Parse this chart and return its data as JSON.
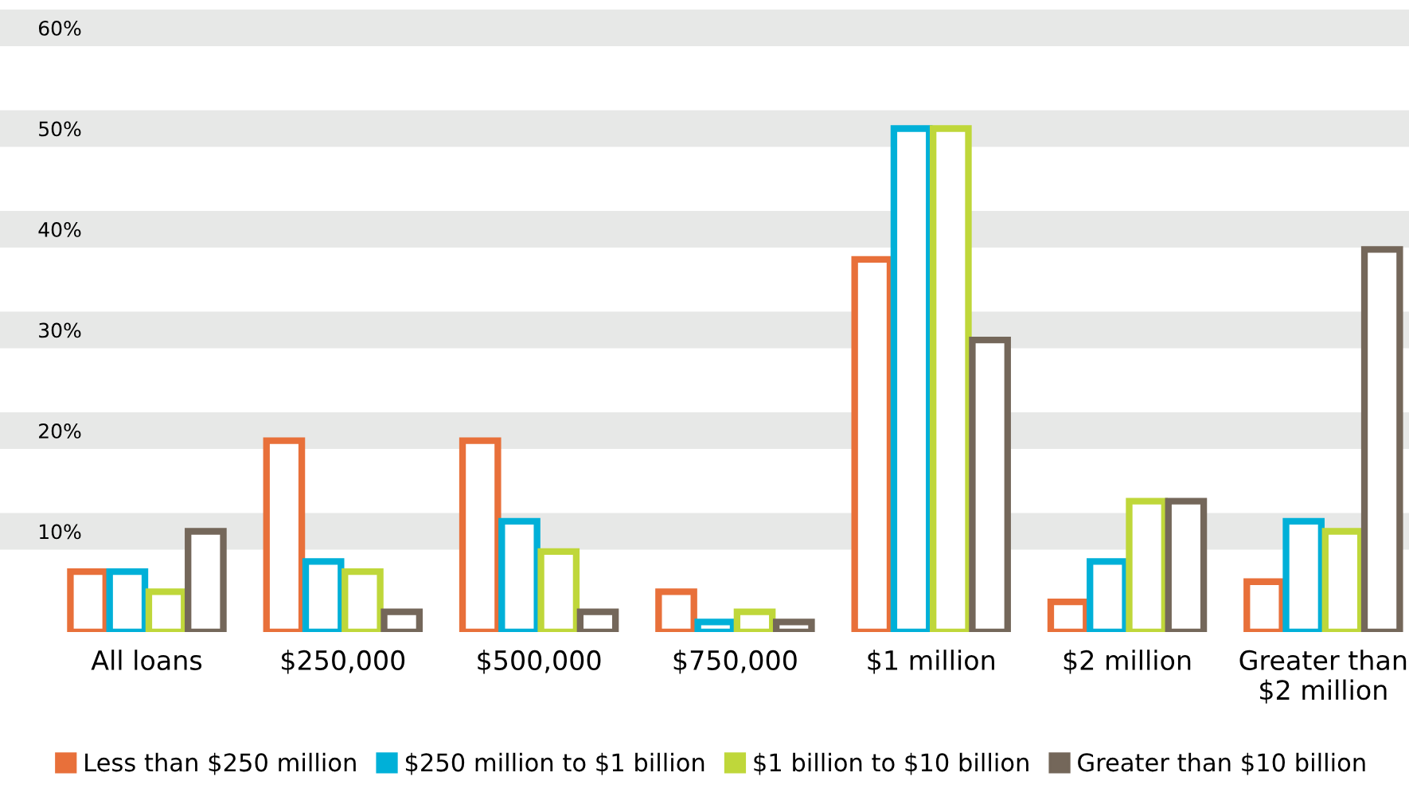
{
  "chart_data": {
    "type": "bar",
    "categories": [
      "All loans",
      "$250,000",
      "$500,000",
      "$750,000",
      "$1 million",
      "$2 million",
      "Greater than\n$2 million"
    ],
    "series": [
      {
        "name": "Less than $250 million",
        "color": "#e8703a",
        "values": [
          6,
          19,
          19,
          4,
          37,
          3,
          5
        ]
      },
      {
        "name": "$250 million to $1 billion",
        "color": "#00b0d8",
        "values": [
          6,
          7,
          11,
          1,
          50,
          7,
          11
        ]
      },
      {
        "name": "$1 billion to $10 billion",
        "color": "#bfd73a",
        "values": [
          4,
          6,
          8,
          2,
          50,
          13,
          10
        ]
      },
      {
        "name": "Greater than $10 billion",
        "color": "#74675a",
        "values": [
          10,
          2,
          2,
          1,
          29,
          13,
          38
        ]
      }
    ],
    "ylim": [
      0,
      60
    ],
    "yticks": [
      {
        "value": 10,
        "label": "10%"
      },
      {
        "value": 20,
        "label": "20%"
      },
      {
        "value": 30,
        "label": "30%"
      },
      {
        "value": 40,
        "label": "40%"
      },
      {
        "value": 50,
        "label": "50%"
      },
      {
        "value": 60,
        "label": "60%"
      }
    ],
    "grid": "y",
    "legend": "bottom"
  }
}
